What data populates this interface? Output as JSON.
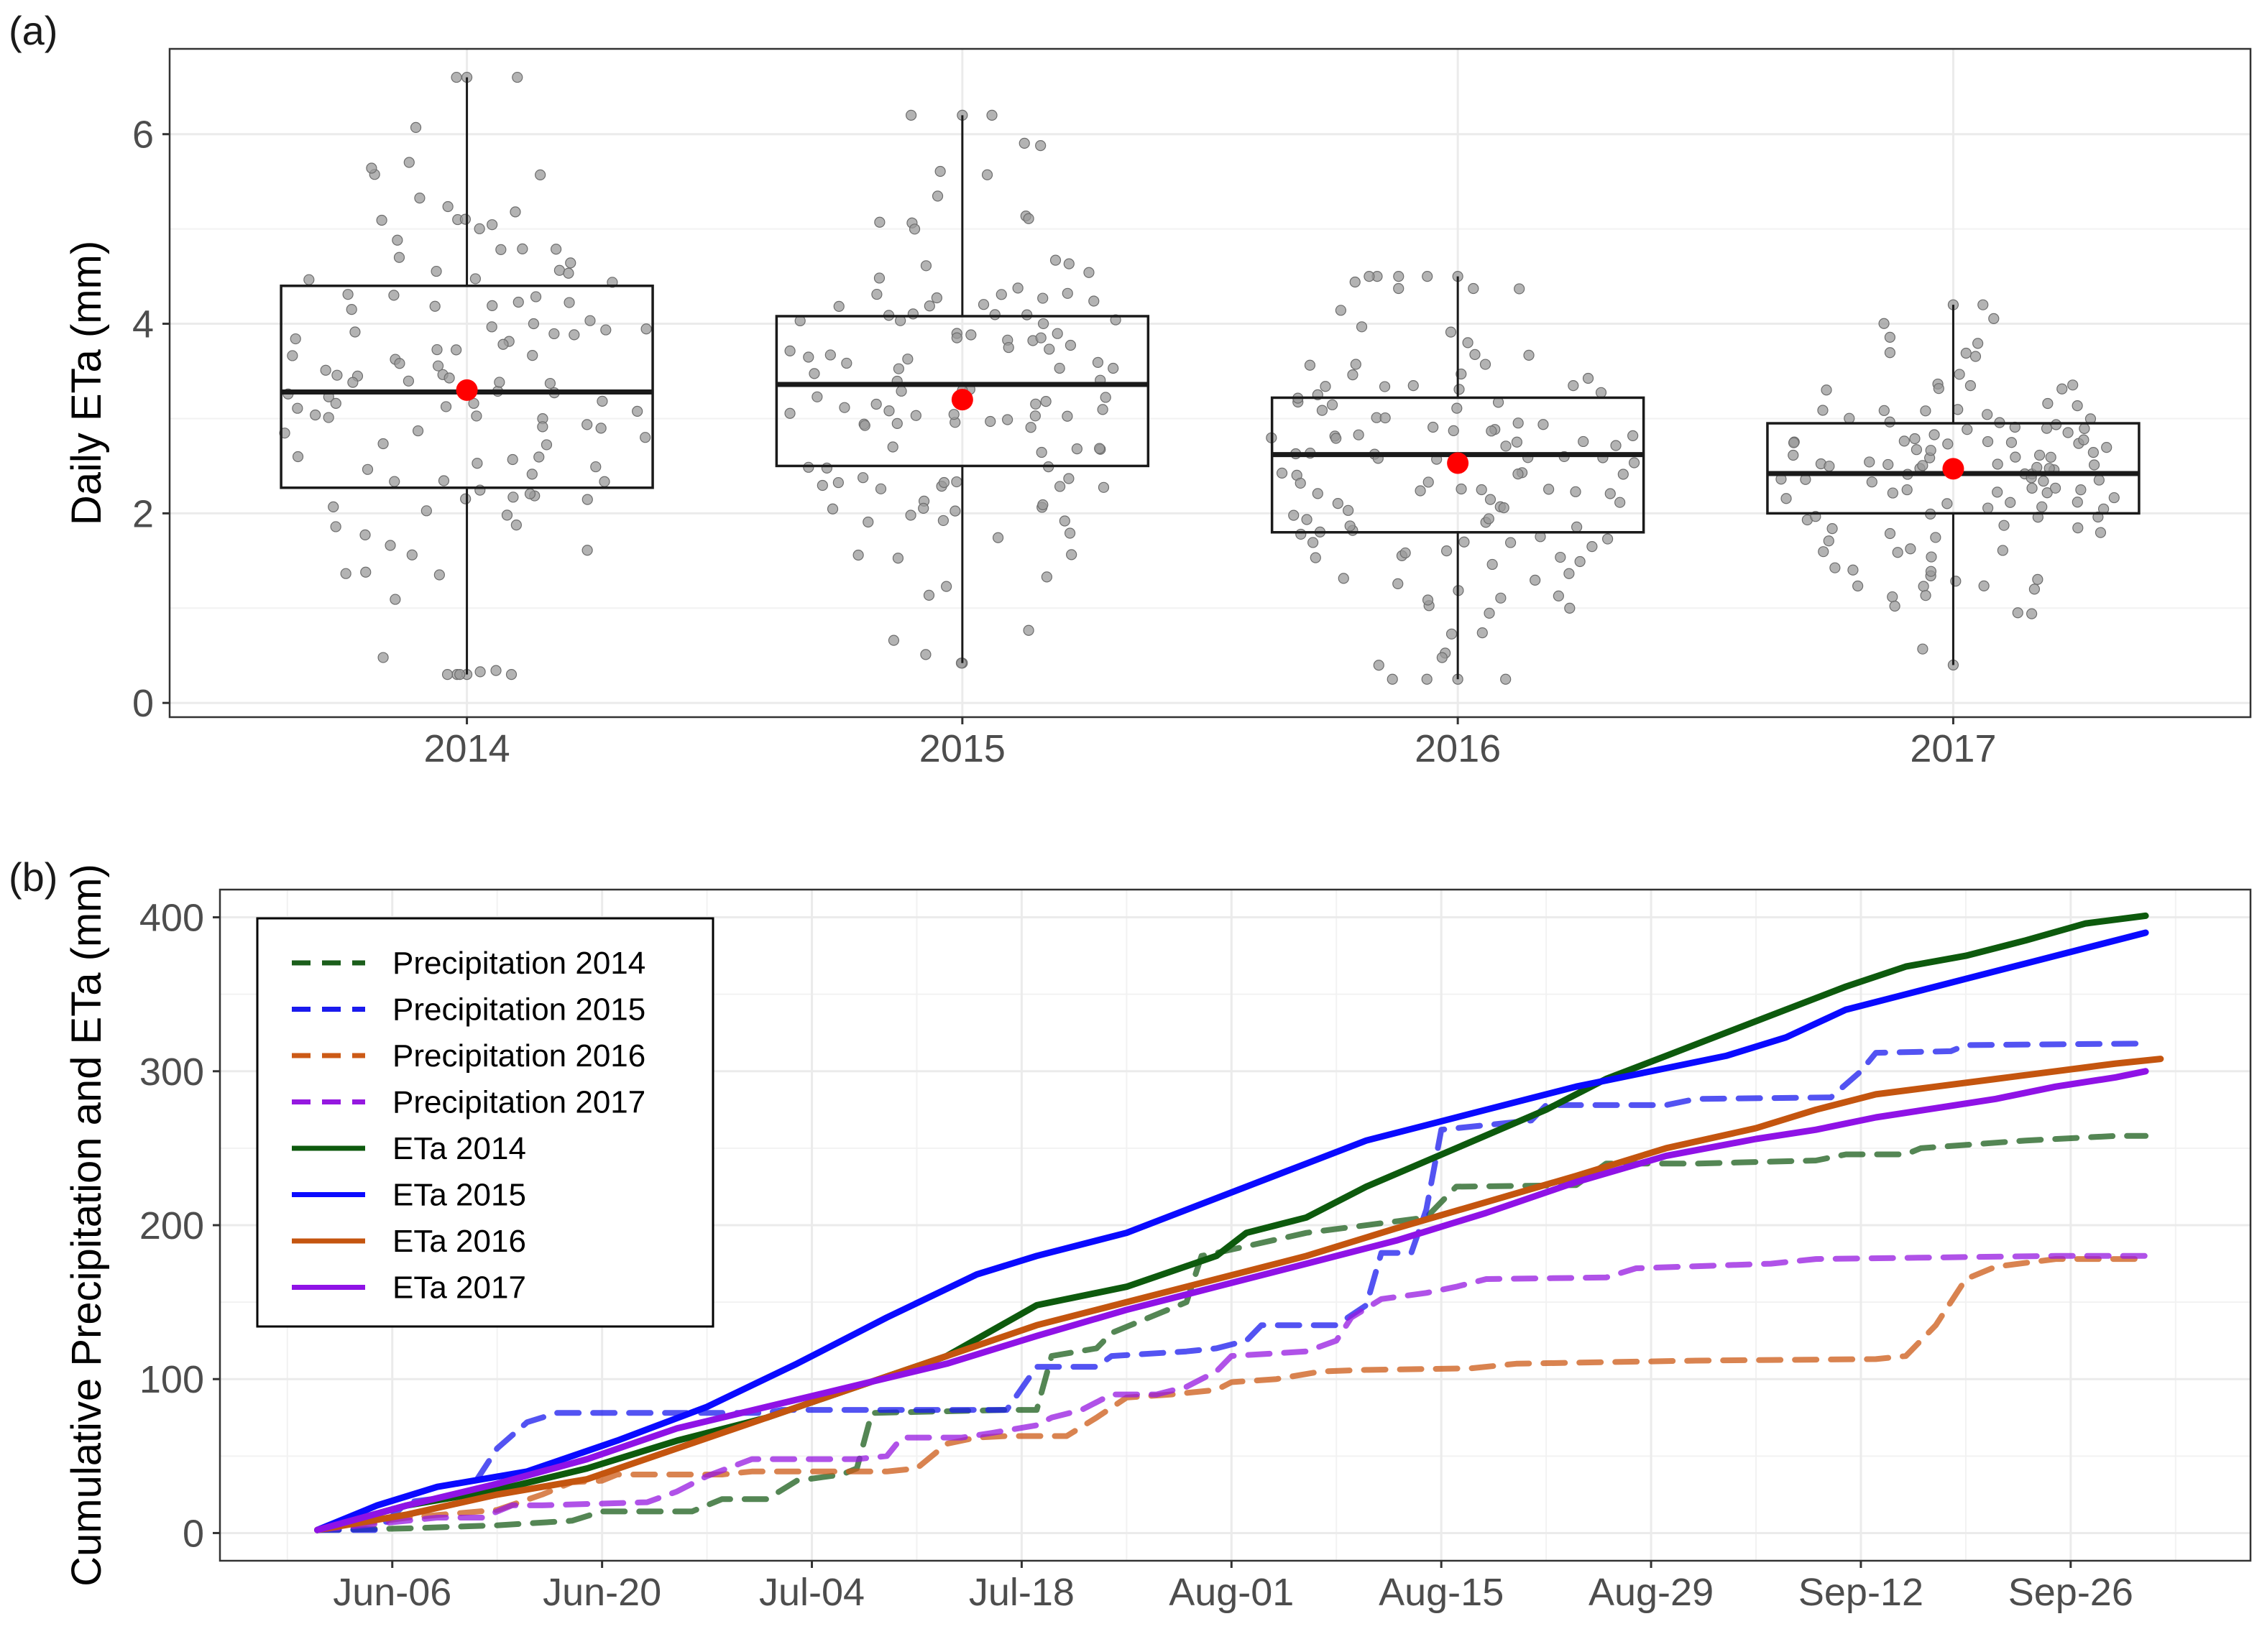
{
  "panels": {
    "a": "(a)",
    "b": "(b)"
  },
  "chart_data": [
    {
      "type": "box",
      "panel": "(a)",
      "ylabel": "Daily ETa (mm)",
      "xlabel": "",
      "categories": [
        "2014",
        "2015",
        "2016",
        "2017"
      ],
      "ylim": [
        -0.15,
        6.9
      ],
      "yticks": [
        0,
        2,
        4,
        6
      ],
      "grid": true,
      "colors": {
        "points": "#999999",
        "mean": "#ff0000",
        "box": "#1a1a1a",
        "grid": "#ebebeb"
      },
      "boxes": [
        {
          "year": "2014",
          "min": 0.3,
          "q1": 2.27,
          "median": 3.28,
          "q3": 4.4,
          "max": 6.6,
          "mean": 3.3,
          "spread": 0.38
        },
        {
          "year": "2015",
          "min": 0.42,
          "q1": 2.5,
          "median": 3.36,
          "q3": 4.08,
          "max": 6.2,
          "mean": 3.2,
          "spread": 0.36
        },
        {
          "year": "2016",
          "min": 0.25,
          "q1": 1.8,
          "median": 2.62,
          "q3": 3.22,
          "max": 4.5,
          "mean": 2.53,
          "spread": 0.38
        },
        {
          "year": "2017",
          "min": 0.4,
          "q1": 2.0,
          "median": 2.42,
          "q3": 2.95,
          "max": 4.2,
          "mean": 2.47,
          "spread": 0.36
        }
      ],
      "jitter_points_per_year": 122
    },
    {
      "type": "line",
      "panel": "(b)",
      "ylabel": "Cumulative Precipitation and ETa (mm)",
      "xlabel": "",
      "x_unit": "day of season (0 = Jun-01)",
      "xlim": [
        -6.5,
        129
      ],
      "xticks": [
        {
          "x": 5,
          "label": "Jun-06"
        },
        {
          "x": 19,
          "label": "Jun-20"
        },
        {
          "x": 33,
          "label": "Jul-04"
        },
        {
          "x": 47,
          "label": "Jul-18"
        },
        {
          "x": 61,
          "label": "Aug-01"
        },
        {
          "x": 75,
          "label": "Aug-15"
        },
        {
          "x": 89,
          "label": "Aug-29"
        },
        {
          "x": 103,
          "label": "Sep-12"
        },
        {
          "x": 117,
          "label": "Sep-26"
        }
      ],
      "ylim": [
        -18,
        418
      ],
      "yticks": [
        0,
        100,
        200,
        300,
        400
      ],
      "grid": true,
      "legend": "top-left",
      "series": [
        {
          "name": "Precipitation 2014",
          "color": "#1b5e1b",
          "dash": true,
          "points": [
            [
              0,
              2
            ],
            [
              6,
              3
            ],
            [
              12,
              5
            ],
            [
              17,
              8
            ],
            [
              19,
              14
            ],
            [
              25,
              14
            ],
            [
              27,
              22
            ],
            [
              30,
              22
            ],
            [
              32,
              34
            ],
            [
              35,
              38
            ],
            [
              36,
              42
            ],
            [
              37,
              78
            ],
            [
              46,
              80
            ],
            [
              48,
              80
            ],
            [
              49,
              115
            ],
            [
              52,
              120
            ],
            [
              53,
              130
            ],
            [
              58,
              150
            ],
            [
              59,
              180
            ],
            [
              60,
              182
            ],
            [
              66,
              195
            ],
            [
              74,
              205
            ],
            [
              76,
              225
            ],
            [
              84,
              226
            ],
            [
              85,
              233
            ],
            [
              86,
              240
            ],
            [
              92,
              240
            ],
            [
              100,
              242
            ],
            [
              102,
              246
            ],
            [
              106,
              246
            ],
            [
              107,
              250
            ],
            [
              114,
              255
            ],
            [
              120,
              258
            ],
            [
              122,
              258
            ]
          ]
        },
        {
          "name": "Precipitation 2015",
          "color": "#1a1aee",
          "dash": true,
          "points": [
            [
              0,
              2
            ],
            [
              4,
              2
            ],
            [
              6,
              20
            ],
            [
              10,
              25
            ],
            [
              12,
              55
            ],
            [
              14,
              72
            ],
            [
              16,
              78
            ],
            [
              25,
              78
            ],
            [
              30,
              78
            ],
            [
              31,
              80
            ],
            [
              45,
              80
            ],
            [
              46,
              80
            ],
            [
              48,
              108
            ],
            [
              52,
              108
            ],
            [
              53,
              115
            ],
            [
              58,
              118
            ],
            [
              60,
              120
            ],
            [
              62,
              125
            ],
            [
              63,
              135
            ],
            [
              68,
              135
            ],
            [
              70,
              148
            ],
            [
              71,
              182
            ],
            [
              73,
              182
            ],
            [
              74,
              210
            ],
            [
              75,
              262
            ],
            [
              81,
              268
            ],
            [
              82,
              278
            ],
            [
              90,
              278
            ],
            [
              92,
              282
            ],
            [
              101,
              283
            ],
            [
              103,
              300
            ],
            [
              104,
              312
            ],
            [
              109,
              313
            ],
            [
              110,
              317
            ],
            [
              122,
              318
            ]
          ]
        },
        {
          "name": "Precipitation 2016",
          "color": "#cc5a16",
          "dash": true,
          "points": [
            [
              0,
              2
            ],
            [
              6,
              10
            ],
            [
              12,
              15
            ],
            [
              15,
              25
            ],
            [
              17,
              33
            ],
            [
              19,
              34
            ],
            [
              20,
              38
            ],
            [
              27,
              38
            ],
            [
              29,
              40
            ],
            [
              38,
              40
            ],
            [
              40,
              42
            ],
            [
              42,
              58
            ],
            [
              44,
              62
            ],
            [
              46,
              63
            ],
            [
              50,
              63
            ],
            [
              52,
              75
            ],
            [
              54,
              88
            ],
            [
              57,
              90
            ],
            [
              60,
              93
            ],
            [
              61,
              98
            ],
            [
              64,
              100
            ],
            [
              67,
              105
            ],
            [
              70,
              106
            ],
            [
              77,
              107
            ],
            [
              80,
              110
            ],
            [
              92,
              112
            ],
            [
              104,
              113
            ],
            [
              106,
              115
            ],
            [
              108,
              135
            ],
            [
              110,
              165
            ],
            [
              112,
              173
            ],
            [
              116,
              178
            ],
            [
              122,
              178
            ]
          ]
        },
        {
          "name": "Precipitation 2017",
          "color": "#9518e0",
          "dash": true,
          "points": [
            [
              0,
              2
            ],
            [
              8,
              10
            ],
            [
              11,
              10
            ],
            [
              13,
              18
            ],
            [
              15,
              18
            ],
            [
              22,
              20
            ],
            [
              24,
              27
            ],
            [
              26,
              37
            ],
            [
              29,
              48
            ],
            [
              36,
              48
            ],
            [
              38,
              50
            ],
            [
              39,
              62
            ],
            [
              43,
              62
            ],
            [
              45,
              65
            ],
            [
              48,
              70
            ],
            [
              49,
              75
            ],
            [
              51,
              80
            ],
            [
              53,
              90
            ],
            [
              56,
              90
            ],
            [
              58,
              95
            ],
            [
              60,
              105
            ],
            [
              61,
              115
            ],
            [
              66,
              118
            ],
            [
              68,
              125
            ],
            [
              69,
              140
            ],
            [
              71,
              152
            ],
            [
              74,
              156
            ],
            [
              76,
              160
            ],
            [
              78,
              165
            ],
            [
              86,
              166
            ],
            [
              88,
              172
            ],
            [
              97,
              175
            ],
            [
              100,
              178
            ],
            [
              116,
              180
            ],
            [
              122,
              180
            ]
          ]
        },
        {
          "name": "ETa 2014",
          "color": "#0d5a0d",
          "dash": false,
          "points": [
            [
              0,
              2
            ],
            [
              6,
              18
            ],
            [
              12,
              28
            ],
            [
              18,
              42
            ],
            [
              24,
              60
            ],
            [
              30,
              75
            ],
            [
              36,
              95
            ],
            [
              42,
              115
            ],
            [
              48,
              148
            ],
            [
              54,
              160
            ],
            [
              60,
              180
            ],
            [
              62,
              195
            ],
            [
              66,
              205
            ],
            [
              70,
              225
            ],
            [
              76,
              250
            ],
            [
              82,
              275
            ],
            [
              86,
              295
            ],
            [
              90,
              310
            ],
            [
              94,
              325
            ],
            [
              98,
              340
            ],
            [
              102,
              355
            ],
            [
              106,
              368
            ],
            [
              110,
              375
            ],
            [
              114,
              385
            ],
            [
              118,
              396
            ],
            [
              122,
              401
            ]
          ]
        },
        {
          "name": "ETa 2015",
          "color": "#0a0aff",
          "dash": false,
          "points": [
            [
              0,
              2
            ],
            [
              4,
              18
            ],
            [
              8,
              30
            ],
            [
              14,
              40
            ],
            [
              20,
              60
            ],
            [
              26,
              82
            ],
            [
              32,
              110
            ],
            [
              38,
              140
            ],
            [
              44,
              168
            ],
            [
              48,
              180
            ],
            [
              54,
              195
            ],
            [
              58,
              210
            ],
            [
              62,
              225
            ],
            [
              66,
              240
            ],
            [
              70,
              255
            ],
            [
              74,
              265
            ],
            [
              78,
              275
            ],
            [
              84,
              290
            ],
            [
              88,
              298
            ],
            [
              94,
              310
            ],
            [
              98,
              322
            ],
            [
              102,
              340
            ],
            [
              106,
              350
            ],
            [
              110,
              360
            ],
            [
              114,
              370
            ],
            [
              118,
              380
            ],
            [
              122,
              390
            ]
          ]
        },
        {
          "name": "ETa 2016",
          "color": "#c4550f",
          "dash": false,
          "points": [
            [
              0,
              2
            ],
            [
              6,
              12
            ],
            [
              12,
              25
            ],
            [
              18,
              35
            ],
            [
              24,
              55
            ],
            [
              30,
              75
            ],
            [
              36,
              95
            ],
            [
              42,
              115
            ],
            [
              48,
              135
            ],
            [
              54,
              150
            ],
            [
              60,
              165
            ],
            [
              66,
              180
            ],
            [
              72,
              198
            ],
            [
              78,
              215
            ],
            [
              84,
              232
            ],
            [
              90,
              250
            ],
            [
              96,
              263
            ],
            [
              100,
              275
            ],
            [
              104,
              285
            ],
            [
              108,
              290
            ],
            [
              112,
              295
            ],
            [
              116,
              300
            ],
            [
              120,
              305
            ],
            [
              123,
              308
            ]
          ]
        },
        {
          "name": "ETa 2017",
          "color": "#8f12e6",
          "dash": false,
          "points": [
            [
              0,
              2
            ],
            [
              6,
              18
            ],
            [
              12,
              32
            ],
            [
              18,
              48
            ],
            [
              24,
              68
            ],
            [
              30,
              82
            ],
            [
              36,
              96
            ],
            [
              42,
              110
            ],
            [
              48,
              128
            ],
            [
              54,
              145
            ],
            [
              60,
              160
            ],
            [
              66,
              175
            ],
            [
              72,
              190
            ],
            [
              78,
              208
            ],
            [
              84,
              228
            ],
            [
              90,
              245
            ],
            [
              96,
              256
            ],
            [
              100,
              262
            ],
            [
              104,
              270
            ],
            [
              108,
              276
            ],
            [
              112,
              282
            ],
            [
              116,
              290
            ],
            [
              120,
              296
            ],
            [
              122,
              300
            ]
          ]
        }
      ]
    }
  ]
}
